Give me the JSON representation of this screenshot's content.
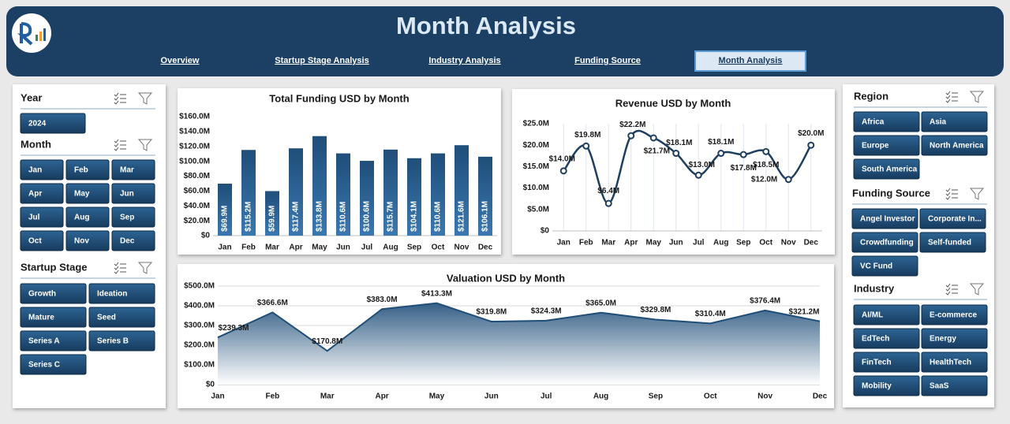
{
  "header": {
    "title": "Month Analysis"
  },
  "nav": {
    "items": [
      {
        "label": "Overview",
        "active": false
      },
      {
        "label": "Startup Stage Analysis",
        "active": false
      },
      {
        "label": "Industry Analysis",
        "active": false
      },
      {
        "label": "Funding Source",
        "active": false
      },
      {
        "label": "Month Analysis",
        "active": true
      }
    ]
  },
  "slicers": [
    {
      "title": "Year",
      "options": [
        "2024"
      ]
    },
    {
      "title": "Month",
      "options": [
        "Jan",
        "Feb",
        "Mar",
        "Apr",
        "May",
        "Jun",
        "Jul",
        "Aug",
        "Sep",
        "Oct",
        "Nov",
        "Dec"
      ]
    },
    {
      "title": "Startup Stage",
      "options": [
        "Growth",
        "Ideation",
        "Mature",
        "Seed",
        "Series A",
        "Series B",
        "Series C"
      ]
    },
    {
      "title": "Region",
      "options": [
        "Africa",
        "Asia",
        "Europe",
        "North America",
        "South America"
      ]
    },
    {
      "title": "Funding Source",
      "options": [
        "Angel Investor",
        "Corporate In...",
        "Crowdfunding",
        "Self-funded",
        "VC Fund"
      ]
    },
    {
      "title": "Industry",
      "options": [
        "AI/ML",
        "E-commerce",
        "EdTech",
        "Energy",
        "FinTech",
        "HealthTech",
        "Mobility",
        "SaaS"
      ]
    }
  ],
  "chart_data": [
    {
      "type": "bar",
      "title": "Total Funding USD by Month",
      "color": "#1f4e79",
      "categories": [
        "Jan",
        "Feb",
        "Mar",
        "Apr",
        "May",
        "Jun",
        "Jul",
        "Aug",
        "Sep",
        "Oct",
        "Nov",
        "Dec"
      ],
      "values": [
        69.9,
        115.2,
        59.9,
        117.4,
        133.8,
        110.6,
        100.6,
        115.7,
        104.1,
        110.6,
        121.6,
        106.1
      ],
      "value_labels": [
        "$69.9M",
        "$115.2M",
        "$59.9M",
        "$117.4M",
        "$133.8M",
        "$110.6M",
        "$100.6M",
        "$115.7M",
        "$104.1M",
        "$110.6M",
        "$121.6M",
        "$106.1M"
      ],
      "ylim": [
        0,
        160
      ],
      "yticks": [
        {
          "value": 0,
          "label": "$0"
        },
        {
          "value": 20,
          "label": "$20.0M"
        },
        {
          "value": 40,
          "label": "$40.0M"
        },
        {
          "value": 60,
          "label": "$60.0M"
        },
        {
          "value": 80,
          "label": "$80.0M"
        },
        {
          "value": 100,
          "label": "$100.0M"
        },
        {
          "value": 120,
          "label": "$120.0M"
        },
        {
          "value": 140,
          "label": "$140.0M"
        },
        {
          "value": 160,
          "label": "$160.0M"
        }
      ]
    },
    {
      "type": "line",
      "title": "Revenue USD by Month",
      "color": "#1f3f5f",
      "categories": [
        "Jan",
        "Feb",
        "Mar",
        "Apr",
        "May",
        "Jun",
        "Jul",
        "Aug",
        "Sep",
        "Oct",
        "Nov",
        "Dec"
      ],
      "values": [
        14.0,
        19.8,
        6.4,
        22.2,
        21.7,
        18.1,
        13.0,
        18.1,
        17.8,
        18.5,
        12.0,
        20.0
      ],
      "value_labels": [
        "$14.0M",
        "$19.8M",
        "$6.4M",
        "$22.2M",
        "$21.7M",
        "$18.1M",
        "$13.0M",
        "$18.1M",
        "$17.8M",
        "$18.5M",
        "$12.0M",
        "$20.0M"
      ],
      "ylim": [
        0,
        25
      ],
      "yticks": [
        {
          "value": 0,
          "label": "$0"
        },
        {
          "value": 5,
          "label": "$5.0M"
        },
        {
          "value": 10,
          "label": "$10.0M"
        },
        {
          "value": 15,
          "label": "$15.0M"
        },
        {
          "value": 20,
          "label": "$20.0M"
        },
        {
          "value": 25,
          "label": "$25.0M"
        }
      ]
    },
    {
      "type": "area",
      "title": "Valuation USD by Month",
      "color": "#1f4e79",
      "categories": [
        "Jan",
        "Feb",
        "Mar",
        "Apr",
        "May",
        "Jun",
        "Jul",
        "Aug",
        "Sep",
        "Oct",
        "Nov",
        "Dec"
      ],
      "values": [
        239.3,
        366.6,
        170.8,
        383.0,
        413.3,
        319.8,
        324.3,
        365.0,
        329.8,
        310.4,
        376.4,
        321.2
      ],
      "value_labels": [
        "$239.3M",
        "$366.6M",
        "$170.8M",
        "$383.0M",
        "$413.3M",
        "$319.8M",
        "$324.3M",
        "$365.0M",
        "$329.8M",
        "$310.4M",
        "$376.4M",
        "$321.2M"
      ],
      "ylim": [
        0,
        500
      ],
      "yticks": [
        {
          "value": 0,
          "label": "$0"
        },
        {
          "value": 100,
          "label": "$100.0M"
        },
        {
          "value": 200,
          "label": "$200.0M"
        },
        {
          "value": 300,
          "label": "$300.0M"
        },
        {
          "value": 400,
          "label": "$400.0M"
        },
        {
          "value": 500,
          "label": "$500.0M"
        }
      ],
      "grid": true
    }
  ]
}
